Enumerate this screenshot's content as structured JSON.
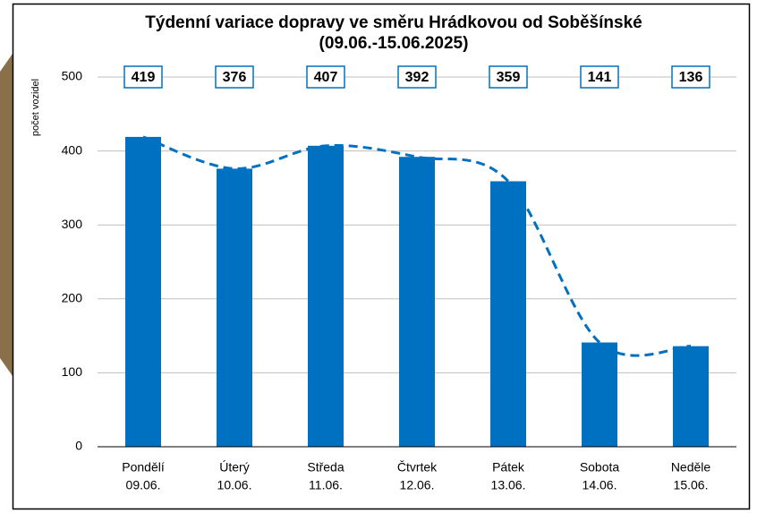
{
  "chart_data": {
    "type": "bar",
    "title": [
      "Týdenní variace dopravy ve směru Hrádkovou od Soběšínské",
      "(09.06.-15.06.2025)"
    ],
    "y_label": "počet vozidel",
    "categories": [
      [
        "Pondělí",
        "09.06."
      ],
      [
        "Úterý",
        "10.06."
      ],
      [
        "Středa",
        "11.06."
      ],
      [
        "Čtvrtek",
        "12.06."
      ],
      [
        "Pátek",
        "13.06."
      ],
      [
        "Sobota",
        "14.06."
      ],
      [
        "Neděle",
        "15.06."
      ]
    ],
    "values": [
      419,
      376,
      407,
      392,
      359,
      141,
      136
    ],
    "color": "#0070c0",
    "trend_line": {
      "style": "dashed",
      "smooth": true
    },
    "ylim": [
      0,
      500
    ],
    "yticks": [
      0,
      100,
      200,
      300,
      400,
      500
    ],
    "grid": true
  }
}
